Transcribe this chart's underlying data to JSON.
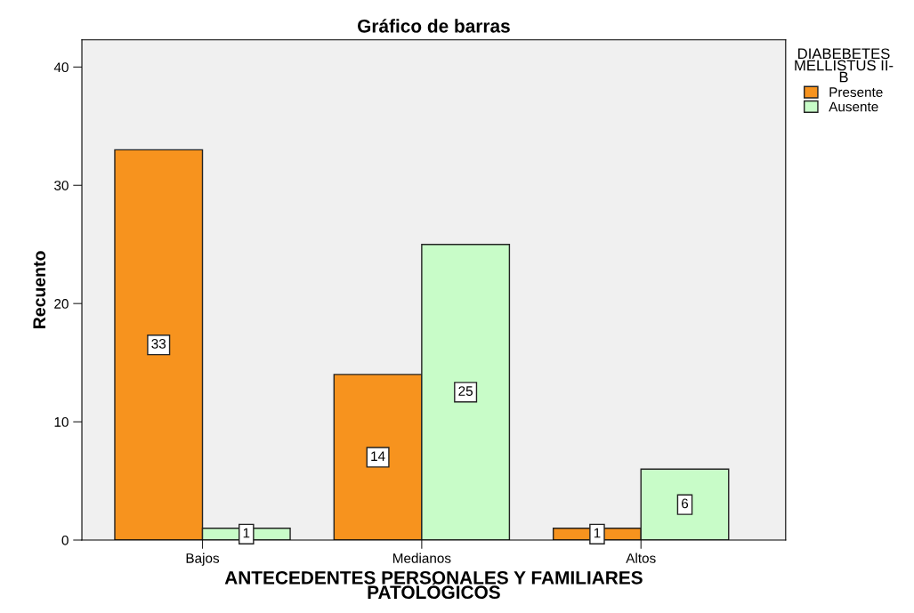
{
  "chart_data": {
    "type": "bar",
    "title": "Gráfico de barras",
    "xlabel": "ANTECEDENTES PERSONALES Y FAMILIARES\nPATOLÓGICOS",
    "ylabel": "Recuento",
    "categories": [
      "Bajos",
      "Medianos",
      "Altos"
    ],
    "series": [
      {
        "name": "Presente",
        "color": "#f7931e",
        "values": [
          33,
          14,
          1
        ]
      },
      {
        "name": "Ausente",
        "color": "#c8fcc8",
        "values": [
          1,
          25,
          6
        ]
      }
    ],
    "ylim": [
      0,
      42.3
    ],
    "yticks": [
      0,
      10,
      20,
      30,
      40
    ],
    "grid": false,
    "legend": "top right",
    "legend_title": "DIABEBETES\nMELLISTUS II-\nB",
    "data_labels": true
  }
}
